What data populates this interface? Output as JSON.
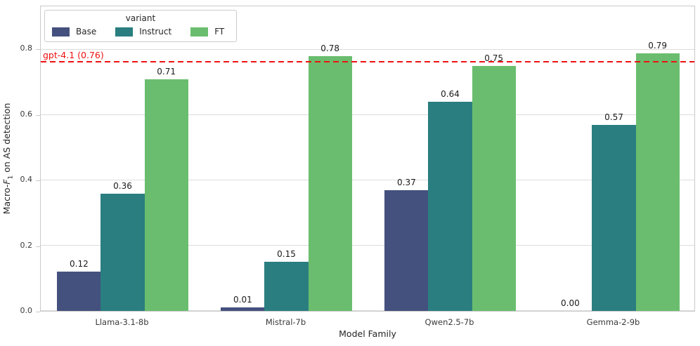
{
  "chart_data": {
    "type": "bar",
    "categories": [
      "Llama-3.1-8b",
      "Mistral-7b",
      "Qwen2.5-7b",
      "Gemma-2-9b"
    ],
    "series": [
      {
        "name": "Base",
        "color": "#44517e",
        "values": [
          0.12,
          0.01,
          0.37,
          0.0
        ]
      },
      {
        "name": "Instruct",
        "color": "#2a7e80",
        "values": [
          0.36,
          0.15,
          0.64,
          0.57
        ]
      },
      {
        "name": "FT",
        "color": "#6abd6e",
        "values": [
          0.71,
          0.78,
          0.75,
          0.79
        ]
      }
    ],
    "xlabel": "Model Family",
    "ylabel_parts": {
      "prefix": "Macro-",
      "variable": "F",
      "subscript": "1",
      "suffix": " on AS detection"
    },
    "ylim": [
      0,
      0.933
    ],
    "yticks": [
      0.0,
      0.2,
      0.4,
      0.6,
      0.8
    ],
    "grid": true,
    "legend_title": "variant",
    "legend_position": "upper left",
    "bar_group_fill": 0.8,
    "reference_line": {
      "value": 0.76,
      "label": "gpt-4.1 (0.76)",
      "color": "#ee1111",
      "style": "dashed"
    },
    "colors": {
      "grid": "#dcdcdc",
      "spine": "#c9c9c9",
      "tick_text": "#3a3a3a",
      "label_text": "#262626",
      "bar_value_text": "#1a1a1a"
    }
  }
}
